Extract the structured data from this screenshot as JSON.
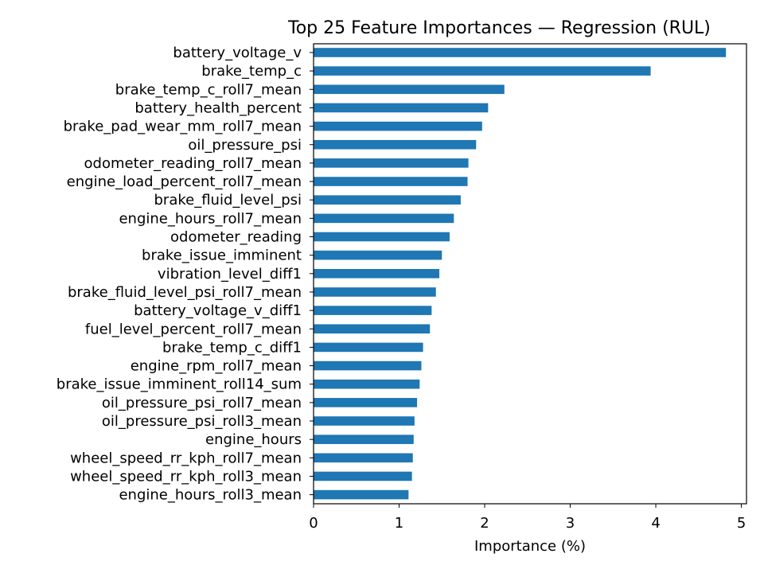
{
  "chart_data": {
    "type": "bar",
    "orientation": "horizontal",
    "title": "Top 25 Feature Importances — Regression (RUL)",
    "xlabel": "Importance (%)",
    "ylabel": "",
    "xlim": [
      0,
      5.06
    ],
    "xticks": [
      0,
      1,
      2,
      3,
      4,
      5
    ],
    "bar_color": "#1f77b4",
    "grid": false,
    "categories": [
      "battery_voltage_v",
      "brake_temp_c",
      "brake_temp_c_roll7_mean",
      "battery_health_percent",
      "brake_pad_wear_mm_roll7_mean",
      "oil_pressure_psi",
      "odometer_reading_roll7_mean",
      "engine_load_percent_roll7_mean",
      "brake_fluid_level_psi",
      "engine_hours_roll7_mean",
      "odometer_reading",
      "brake_issue_imminent",
      "vibration_level_diff1",
      "brake_fluid_level_psi_roll7_mean",
      "battery_voltage_v_diff1",
      "fuel_level_percent_roll7_mean",
      "brake_temp_c_diff1",
      "engine_rpm_roll7_mean",
      "brake_issue_imminent_roll14_sum",
      "oil_pressure_psi_roll7_mean",
      "oil_pressure_psi_roll3_mean",
      "engine_hours",
      "wheel_speed_rr_kph_roll7_mean",
      "wheel_speed_rr_kph_roll3_mean",
      "engine_hours_roll3_mean"
    ],
    "values": [
      4.82,
      3.94,
      2.23,
      2.04,
      1.97,
      1.9,
      1.81,
      1.8,
      1.72,
      1.64,
      1.59,
      1.5,
      1.47,
      1.43,
      1.38,
      1.36,
      1.28,
      1.26,
      1.24,
      1.21,
      1.18,
      1.17,
      1.16,
      1.15,
      1.11
    ]
  }
}
